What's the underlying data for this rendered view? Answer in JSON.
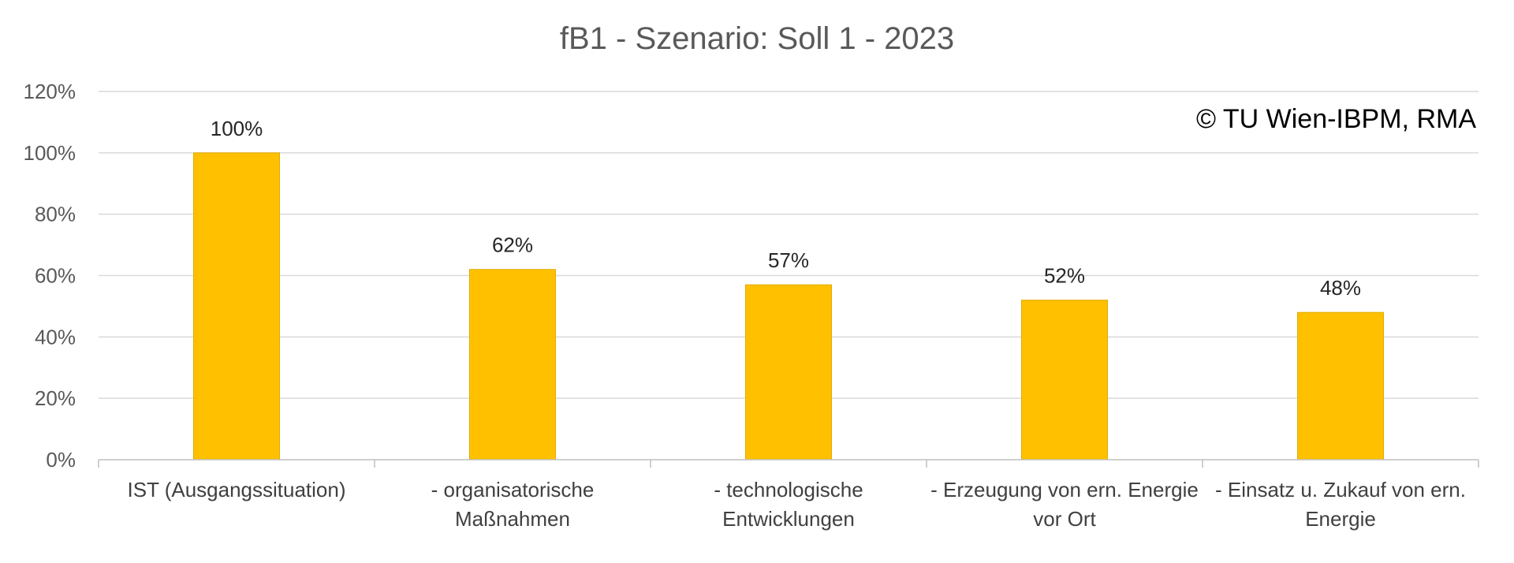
{
  "chart_data": {
    "type": "bar",
    "title": "fB1 - Szenario: Soll 1 - 2023",
    "annotation": "© TU Wien-IBPM, RMA",
    "categories": [
      [
        "IST (Ausgangssituation)"
      ],
      [
        "- organisatorische",
        "Maßnahmen"
      ],
      [
        "- technologische",
        "Entwicklungen"
      ],
      [
        "- Erzeugung von ern. Energie",
        "vor Ort"
      ],
      [
        "- Einsatz u. Zukauf von ern.",
        "Energie"
      ]
    ],
    "values": [
      100,
      62,
      57,
      52,
      48
    ],
    "data_labels": [
      "100%",
      "62%",
      "57%",
      "52%",
      "48%"
    ],
    "y_ticks": [
      0,
      20,
      40,
      60,
      80,
      100,
      120
    ],
    "y_tick_labels": [
      "0%",
      "20%",
      "40%",
      "60%",
      "80%",
      "100%",
      "120%"
    ],
    "ylim": [
      0,
      120
    ],
    "xlabel": "",
    "ylabel": "",
    "grid": true,
    "legend": "none",
    "colors": {
      "bar": "#ffc000",
      "grid": "#d9d9d9",
      "text": "#595959"
    }
  }
}
